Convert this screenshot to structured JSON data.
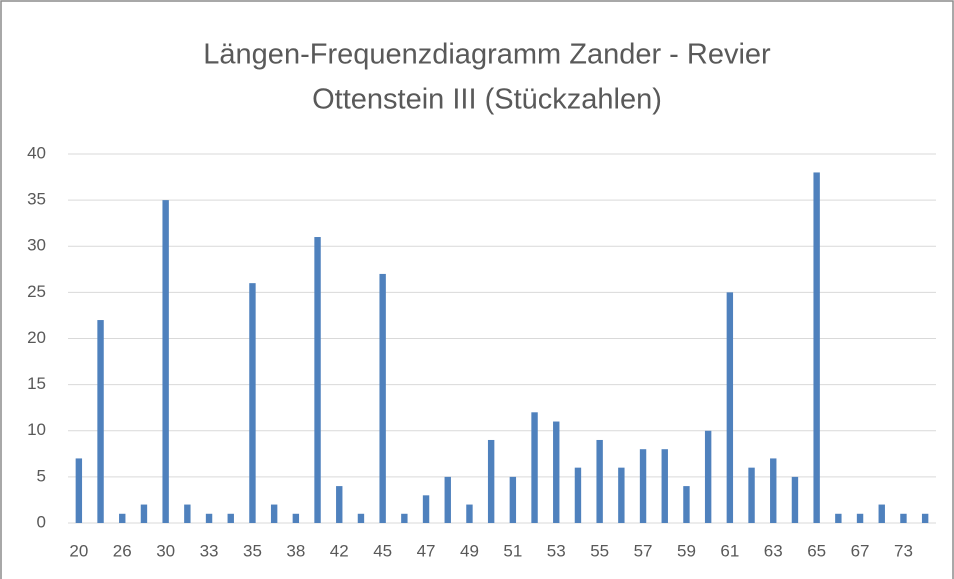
{
  "chart_data": {
    "type": "bar",
    "title": [
      "Längen-Frequenzdiagramm  Zander - Revier",
      "Ottenstein III (Stückzahlen)"
    ],
    "categories": [
      20,
      null,
      26,
      null,
      30,
      null,
      33,
      null,
      35,
      null,
      38,
      null,
      42,
      null,
      45,
      null,
      47,
      null,
      49,
      null,
      51,
      null,
      53,
      null,
      55,
      null,
      57,
      null,
      59,
      null,
      61,
      null,
      63,
      null,
      65,
      null,
      67,
      null,
      73,
      null
    ],
    "values": [
      7,
      22,
      1,
      2,
      35,
      2,
      1,
      1,
      26,
      2,
      1,
      31,
      4,
      1,
      27,
      1,
      3,
      5,
      2,
      9,
      5,
      12,
      11,
      6,
      9,
      6,
      8,
      8,
      4,
      10,
      25,
      6,
      7,
      5,
      38,
      1,
      1,
      2,
      1,
      1
    ],
    "color": "#4f81bd",
    "ylim": [
      0,
      40
    ],
    "yticks": [
      0,
      5,
      10,
      15,
      20,
      25,
      30,
      35,
      40
    ],
    "grid": true
  }
}
